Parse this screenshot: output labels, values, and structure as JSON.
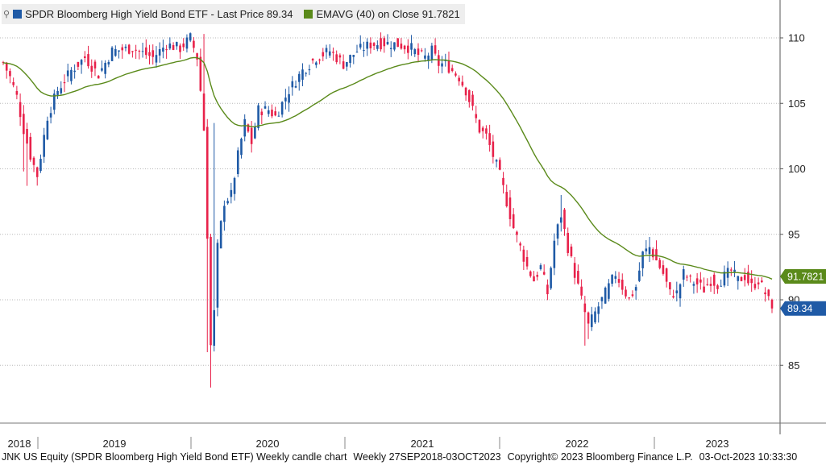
{
  "legend": {
    "series1_label": "SPDR Bloomberg High Yield Bond ETF - Last Price 89.34",
    "series1_color": "#1f5aa6",
    "series2_label": "EMAVG (40)  on Close 91.7821",
    "series2_color": "#5a8a1a"
  },
  "footer": {
    "ticker_desc": "JNK US Equity (SPDR Bloomberg High Yield Bond ETF) Weekly candle chart",
    "period": "Weekly 27SEP2018-03OCT2023",
    "copyright": "Copyright© 2023 Bloomberg Finance L.P.",
    "timestamp": "03-Oct-2023 10:33:30"
  },
  "chart_data": {
    "type": "candlestick",
    "x_range": [
      "2018-09-27",
      "2023-10-03"
    ],
    "x_labels": [
      "2018",
      "2019",
      "2020",
      "2021",
      "2022",
      "2023"
    ],
    "y_ticks": [
      85,
      90,
      95,
      100,
      105,
      110
    ],
    "ylim": [
      80.5,
      112.5
    ],
    "last_price_label": "89.34",
    "ema_label": "91.7821",
    "up_color": "#1f5aa6",
    "down_color": "#e8214a",
    "ema_color": "#5a8a1a",
    "price_keyframes": [
      [
        0,
        108.1
      ],
      [
        2,
        107.0
      ],
      [
        4,
        105.5
      ],
      [
        6,
        103.0
      ],
      [
        8,
        101.0
      ],
      [
        10,
        99.5
      ],
      [
        13,
        104.0
      ],
      [
        16,
        106.0
      ],
      [
        20,
        107.5
      ],
      [
        24,
        108.5
      ],
      [
        28,
        107.2
      ],
      [
        32,
        109.0
      ],
      [
        38,
        109.2
      ],
      [
        44,
        108.5
      ],
      [
        48,
        109.5
      ],
      [
        52,
        109.2
      ],
      [
        55,
        110.0
      ],
      [
        57,
        108.5
      ],
      [
        58,
        106.0
      ],
      [
        59,
        103.0
      ],
      [
        60,
        95.0
      ],
      [
        61,
        86.5
      ],
      [
        62,
        89.0
      ],
      [
        63,
        94.0
      ],
      [
        65,
        97.5
      ],
      [
        67,
        98.0
      ],
      [
        69,
        101.0
      ],
      [
        71,
        103.5
      ],
      [
        73,
        102.0
      ],
      [
        75,
        104.5
      ],
      [
        78,
        104.5
      ],
      [
        80,
        104.0
      ],
      [
        82,
        105.0
      ],
      [
        84,
        106.0
      ],
      [
        88,
        107.5
      ],
      [
        92,
        108.5
      ],
      [
        96,
        109.0
      ],
      [
        100,
        108.0
      ],
      [
        104,
        109.0
      ],
      [
        108,
        109.5
      ],
      [
        112,
        109.6
      ],
      [
        116,
        109.5
      ],
      [
        120,
        109.2
      ],
      [
        122,
        108.7
      ],
      [
        124,
        108.5
      ],
      [
        126,
        109.0
      ],
      [
        128,
        108.0
      ],
      [
        130,
        108.0
      ],
      [
        132,
        107.5
      ],
      [
        134,
        107.0
      ],
      [
        136,
        106.0
      ],
      [
        138,
        104.5
      ],
      [
        140,
        103.0
      ],
      [
        142,
        102.5
      ],
      [
        144,
        101.0
      ],
      [
        146,
        99.5
      ],
      [
        148,
        97.5
      ],
      [
        150,
        95.5
      ],
      [
        152,
        94.0
      ],
      [
        154,
        92.5
      ],
      [
        156,
        91.5
      ],
      [
        158,
        92.5
      ],
      [
        160,
        90.5
      ],
      [
        162,
        94.5
      ],
      [
        164,
        96.5
      ],
      [
        166,
        94.0
      ],
      [
        168,
        92.0
      ],
      [
        170,
        90.0
      ],
      [
        172,
        88.0
      ],
      [
        174,
        89.0
      ],
      [
        176,
        90.0
      ],
      [
        178,
        91.0
      ],
      [
        180,
        92.0
      ],
      [
        182,
        91.0
      ],
      [
        184,
        90.0
      ],
      [
        186,
        91.0
      ],
      [
        188,
        93.5
      ],
      [
        190,
        94.0
      ],
      [
        192,
        93.0
      ],
      [
        194,
        92.0
      ],
      [
        196,
        90.5
      ],
      [
        198,
        90.5
      ],
      [
        200,
        92.0
      ],
      [
        202,
        91.5
      ],
      [
        204,
        91.2
      ],
      [
        206,
        90.8
      ],
      [
        208,
        91.5
      ],
      [
        210,
        91.2
      ],
      [
        212,
        91.8
      ],
      [
        214,
        92.2
      ],
      [
        216,
        91.5
      ],
      [
        218,
        91.8
      ],
      [
        220,
        91.0
      ],
      [
        222,
        91.5
      ],
      [
        224,
        90.5
      ],
      [
        226,
        89.34
      ]
    ],
    "lows": {
      "6": 99.8,
      "7": 98.7,
      "61": 83.3,
      "60": 86.0,
      "64": 95.2,
      "171": 86.5,
      "172": 87.0
    },
    "highs": {
      "62": 103.5,
      "59": 110.3,
      "164": 98.0,
      "190": 94.8
    }
  }
}
